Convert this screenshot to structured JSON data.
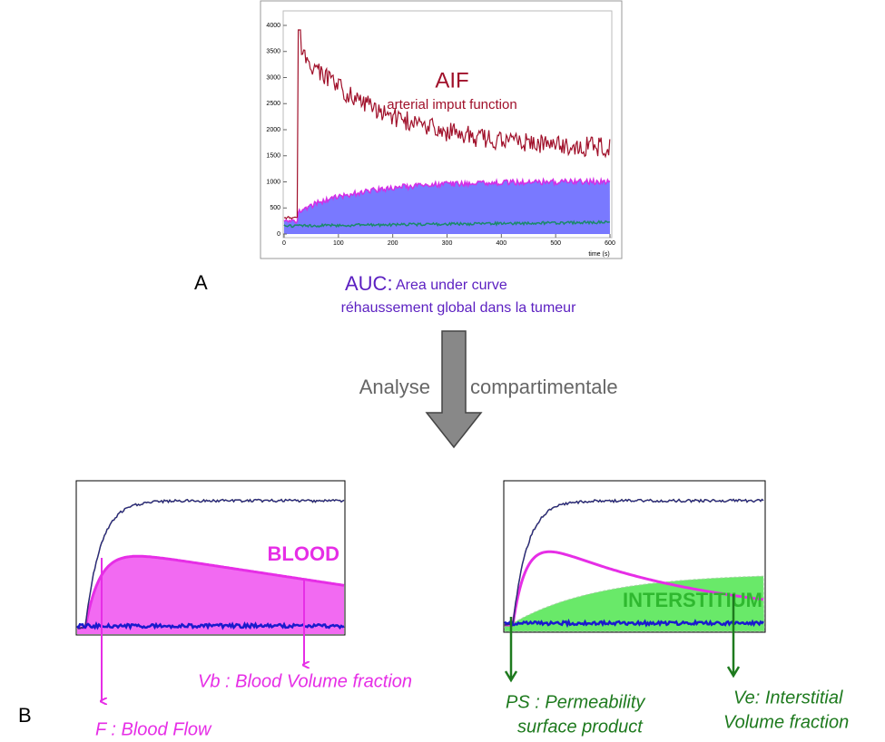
{
  "panel_a": {
    "label": "A",
    "chart": {
      "title": "AIF",
      "subtitle": "arterial imput function",
      "yticks": [
        0,
        500,
        1000,
        1500,
        2000,
        2500,
        3000,
        3500,
        4000
      ],
      "xticks": [
        0,
        100,
        200,
        300,
        400,
        500,
        600
      ],
      "x_label": "time (s)"
    },
    "auc_prefix": "AUC:",
    "auc_text": "Area under curve",
    "auc_note": "réhaussement global dans la tumeur"
  },
  "arrow": {
    "left": "Analyse",
    "right": "compartimentale"
  },
  "panel_b": {
    "label": "B",
    "left": {
      "region": "BLOOD",
      "arrow_1": "F : Blood Flow",
      "arrow_2": "Vb : Blood Volume fraction"
    },
    "right": {
      "region": "INTERSTITIUM",
      "arrow_1": [
        "PS : Permeability",
        "surface product"
      ],
      "arrow_2": [
        "Ve: Interstitial",
        "Volume fraction"
      ]
    }
  }
}
